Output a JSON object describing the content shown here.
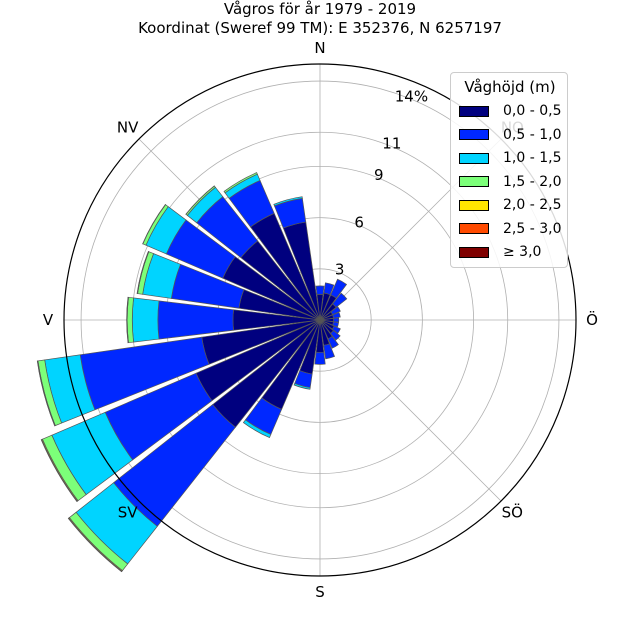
{
  "title_line_1": "Vågros för år 1979 - 2019",
  "title_line_2": "Koordinat (Sweref 99 TM): E 352376, N 6257197",
  "chart_data": {
    "type": "polar_stacked_bar",
    "title": "Vågros för år 1979 - 2019",
    "subtitle": "Koordinat (Sweref 99 TM): E 352376, N 6257197",
    "direction_labels": [
      "N",
      "NO",
      "Ö",
      "SÖ",
      "S",
      "SV",
      "V",
      "NV"
    ],
    "radial_ticks": [
      3,
      6,
      9,
      11,
      14
    ],
    "radial_tick_labels": [
      "3",
      "6",
      "9",
      "11",
      "14%"
    ],
    "rmax": 15,
    "grid": true,
    "legend": {
      "title": "Våghöjd (m)",
      "position": "top-right"
    },
    "sectors": [
      "N",
      "15°",
      "30°",
      "45°",
      "60°",
      "75°",
      "Ö",
      "105°",
      "120°",
      "135°",
      "150°",
      "165°",
      "S",
      "195°",
      "210°",
      "225°",
      "240°",
      "255°",
      "V",
      "285°",
      "300°",
      "315°",
      "330°",
      "345°"
    ],
    "series": [
      {
        "name": "0,0 - 0,5",
        "color": "#00007f",
        "values": [
          1.5,
          1.6,
          1.6,
          1.2,
          0.8,
          0.8,
          0.8,
          0.8,
          0.9,
          1.0,
          1.2,
          1.5,
          1.9,
          3.2,
          5.7,
          8.0,
          7.9,
          7.0,
          5.1,
          4.8,
          6.2,
          5.9,
          6.8,
          5.8
        ]
      },
      {
        "name": "0,5 - 1,0",
        "color": "#0028ff",
        "values": [
          0.5,
          0.6,
          1.0,
          0.8,
          0.5,
          0.4,
          0.3,
          0.3,
          0.4,
          0.5,
          0.6,
          0.8,
          0.7,
          0.8,
          1.6,
          7.4,
          5.8,
          7.2,
          4.4,
          4.0,
          3.6,
          3.3,
          2.1,
          1.4
        ]
      },
      {
        "name": "1,0 - 1,5",
        "color": "#00d4ff",
        "values": [
          0,
          0,
          0,
          0,
          0,
          0,
          0,
          0,
          0,
          0,
          0,
          0,
          0,
          0.1,
          0.2,
          2.8,
          3.4,
          2.1,
          1.5,
          1.7,
          1.3,
          0.7,
          0.4,
          0.1
        ]
      },
      {
        "name": "1,5 - 2,0",
        "color": "#7cff79",
        "values": [
          0,
          0,
          0,
          0,
          0,
          0,
          0,
          0,
          0,
          0,
          0,
          0,
          0,
          0,
          0,
          0.5,
          0.6,
          0.4,
          0.3,
          0.3,
          0.2,
          0.1,
          0.1,
          0
        ]
      },
      {
        "name": "2,0 - 2,5",
        "color": "#ffe600",
        "values": [
          0,
          0,
          0,
          0,
          0,
          0,
          0,
          0,
          0,
          0,
          0,
          0,
          0,
          0,
          0,
          0.05,
          0.05,
          0.03,
          0.02,
          0.02,
          0.01,
          0.01,
          0,
          0
        ]
      },
      {
        "name": "2,5 - 3,0",
        "color": "#ff4a00",
        "values": [
          0,
          0,
          0,
          0,
          0,
          0,
          0,
          0,
          0,
          0,
          0,
          0,
          0,
          0,
          0,
          0.02,
          0.02,
          0.01,
          0.01,
          0.01,
          0,
          0,
          0,
          0
        ]
      },
      {
        "name": "≥ 3,0",
        "color": "#7f0000",
        "values": [
          0,
          0,
          0,
          0,
          0,
          0,
          0,
          0,
          0,
          0,
          0,
          0,
          0,
          0,
          0,
          0.01,
          0.01,
          0,
          0,
          0,
          0,
          0,
          0,
          0
        ]
      }
    ]
  }
}
